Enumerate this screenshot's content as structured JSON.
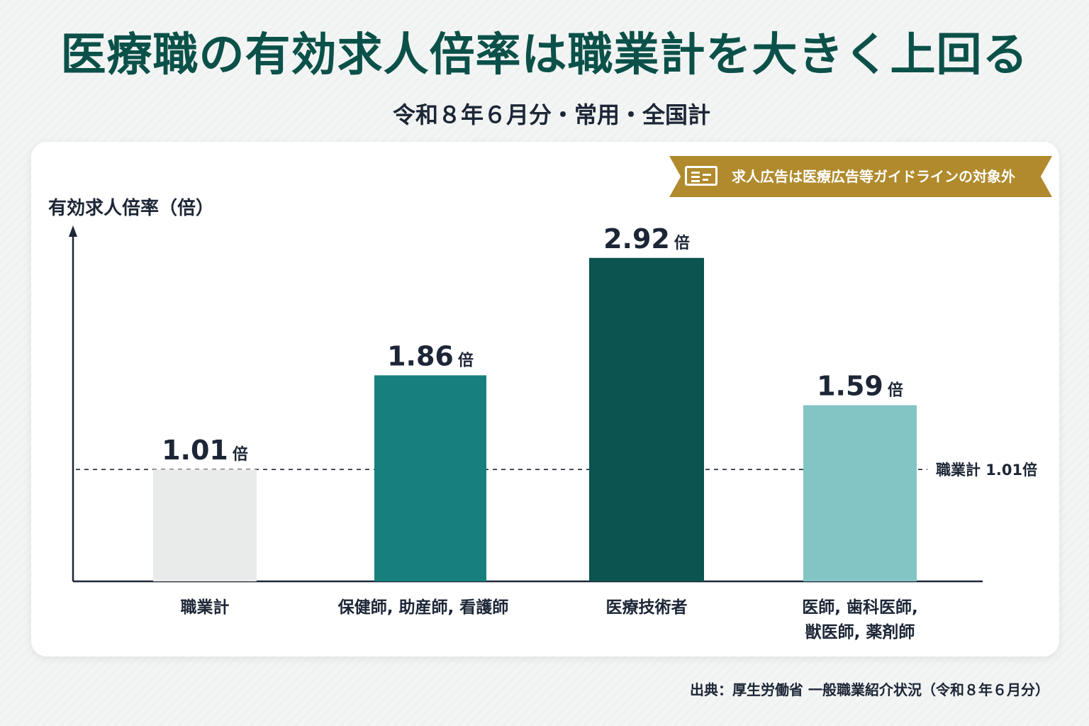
{
  "header": {
    "title": "医療職の有効求人倍率は職業計を大きく上回る",
    "subtitle": "令和８年６月分・常用・全国計"
  },
  "note": {
    "icon": "document-icon",
    "text": "求人広告は医療広告等ガイドラインの対象外"
  },
  "source": "出典：厚生労働省 一般職業紹介状況（令和８年６月分）",
  "chart_data": {
    "type": "bar",
    "ylabel": "有効求人倍率（倍）",
    "xlabel": "",
    "ylim": [
      0,
      3.2
    ],
    "grid": false,
    "categories": [
      "職業計",
      "保健師, 助産師, 看護師",
      "医療技術者",
      "医師, 歯科医師, 獣医師, 薬剤師"
    ],
    "category_lines": [
      [
        "職業計"
      ],
      [
        "保健師, 助産師, 看護師"
      ],
      [
        "医療技術者"
      ],
      [
        "医師, 歯科医師,",
        "獣医師, 薬剤師"
      ]
    ],
    "values": [
      1.01,
      1.86,
      2.92,
      1.59
    ],
    "value_labels": [
      "1.01",
      "1.86",
      "2.92",
      "1.59"
    ],
    "value_unit": "倍",
    "colors": [
      "#e9eaea",
      "#17807e",
      "#0b5450",
      "#83c4c5"
    ],
    "reference_line": {
      "value": 1.01,
      "label": "職業計 1.01倍",
      "style": "dashed"
    }
  }
}
